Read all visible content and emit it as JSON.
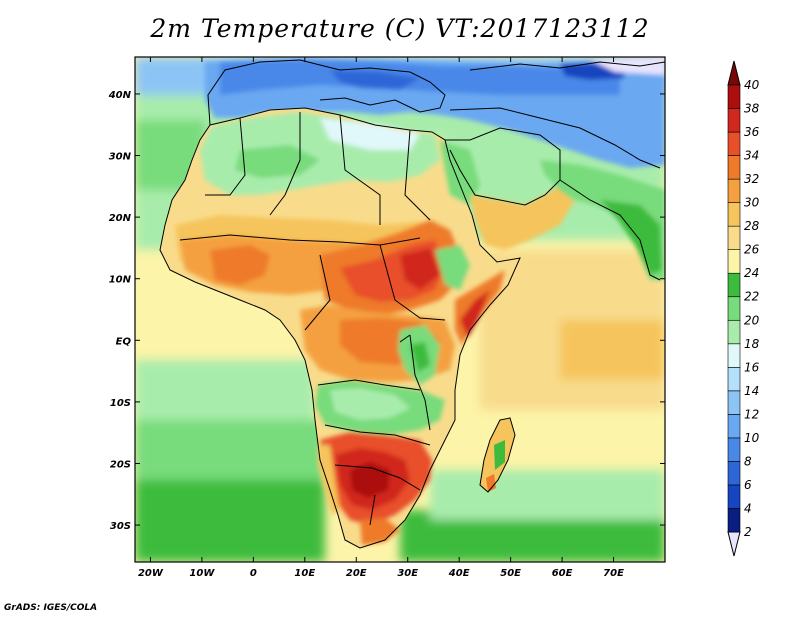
{
  "title": "2m Temperature (C) VT:2017123112",
  "credit": "GrADS: IGES/COLA",
  "map": {
    "lon_range": [
      -23,
      80
    ],
    "lat_range": [
      -36,
      46
    ],
    "lon_ticks": [
      {
        "value": -20,
        "label": "20W"
      },
      {
        "value": -10,
        "label": "10W"
      },
      {
        "value": 0,
        "label": "0"
      },
      {
        "value": 10,
        "label": "10E"
      },
      {
        "value": 20,
        "label": "20E"
      },
      {
        "value": 30,
        "label": "30E"
      },
      {
        "value": 40,
        "label": "40E"
      },
      {
        "value": 50,
        "label": "50E"
      },
      {
        "value": 60,
        "label": "60E"
      },
      {
        "value": 70,
        "label": "70E"
      }
    ],
    "lat_ticks": [
      {
        "value": 40,
        "label": "40N"
      },
      {
        "value": 30,
        "label": "30N"
      },
      {
        "value": 20,
        "label": "20N"
      },
      {
        "value": 10,
        "label": "10N"
      },
      {
        "value": 0,
        "label": "EQ"
      },
      {
        "value": -10,
        "label": "10S"
      },
      {
        "value": -20,
        "label": "20S"
      },
      {
        "value": -30,
        "label": "30S"
      }
    ]
  },
  "colorbar": {
    "levels": [
      "2",
      "4",
      "6",
      "8",
      "10",
      "12",
      "14",
      "16",
      "18",
      "20",
      "22",
      "24",
      "26",
      "28",
      "30",
      "32",
      "34",
      "36",
      "38",
      "40"
    ],
    "colors": [
      "#e8e4fb",
      "#0a1d80",
      "#1545c0",
      "#2e66d8",
      "#4a88e8",
      "#6aa8f2",
      "#8cc4f6",
      "#b4e0fb",
      "#e0f8fa",
      "#a8ecac",
      "#78db7c",
      "#3cbb3c",
      "#fcf4a8",
      "#f8dc8c",
      "#f6c45c",
      "#f4a040",
      "#ee7a2a",
      "#e8502a",
      "#d0281e",
      "#ac0e0e",
      "#7a0808"
    ]
  }
}
